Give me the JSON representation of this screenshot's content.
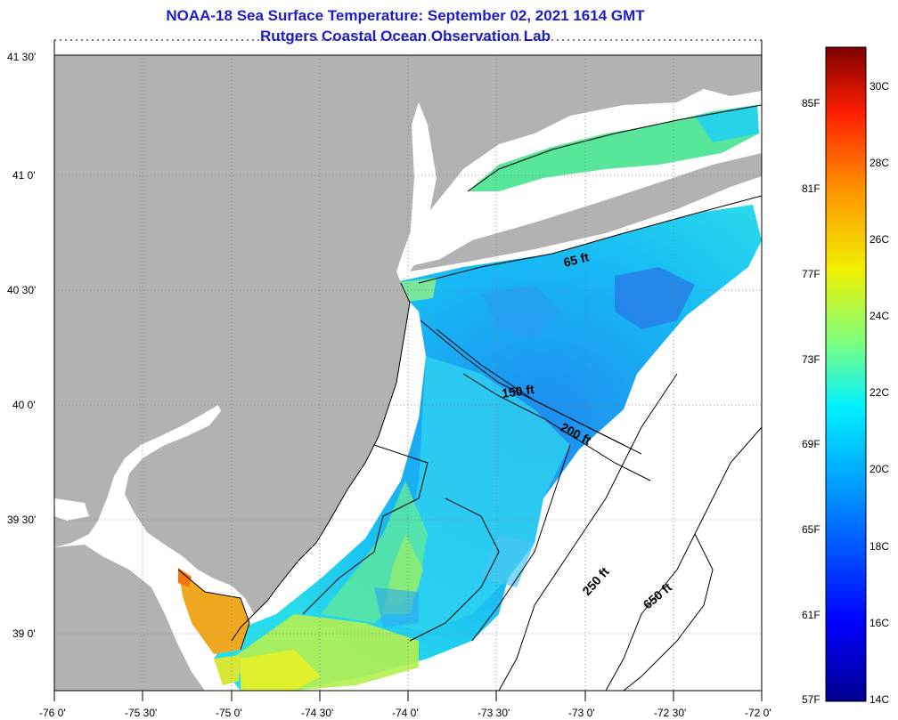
{
  "title": {
    "line1": "NOAA-18 Sea Surface Temperature:  September 02, 2021 1614 GMT",
    "line2": "Rutgers Coastal Ocean Observation Lab"
  },
  "axes": {
    "lat_ticks": [
      "41 30'",
      "41 0'",
      "40 30'",
      "40 0'",
      "39 30'",
      "39 0'"
    ],
    "lon_ticks": [
      "-76 0'",
      "-75 30'",
      "-75 0'",
      "-74 30'",
      "-74 0'",
      "-73 30'",
      "-73 0'",
      "-72 30'",
      "-72 0'"
    ]
  },
  "contours": [
    "65 ft",
    "150 ft",
    "200 ft",
    "250 ft",
    "650 ft"
  ],
  "colorbar": {
    "fahrenheit": [
      "85F",
      "81F",
      "77F",
      "73F",
      "69F",
      "65F",
      "61F",
      "57F"
    ],
    "celsius": [
      "30C",
      "28C",
      "26C",
      "24C",
      "22C",
      "20C",
      "18C",
      "16C",
      "14C"
    ]
  },
  "colors": {
    "land": "#b2b2b2",
    "title": "#1c1cc8"
  }
}
